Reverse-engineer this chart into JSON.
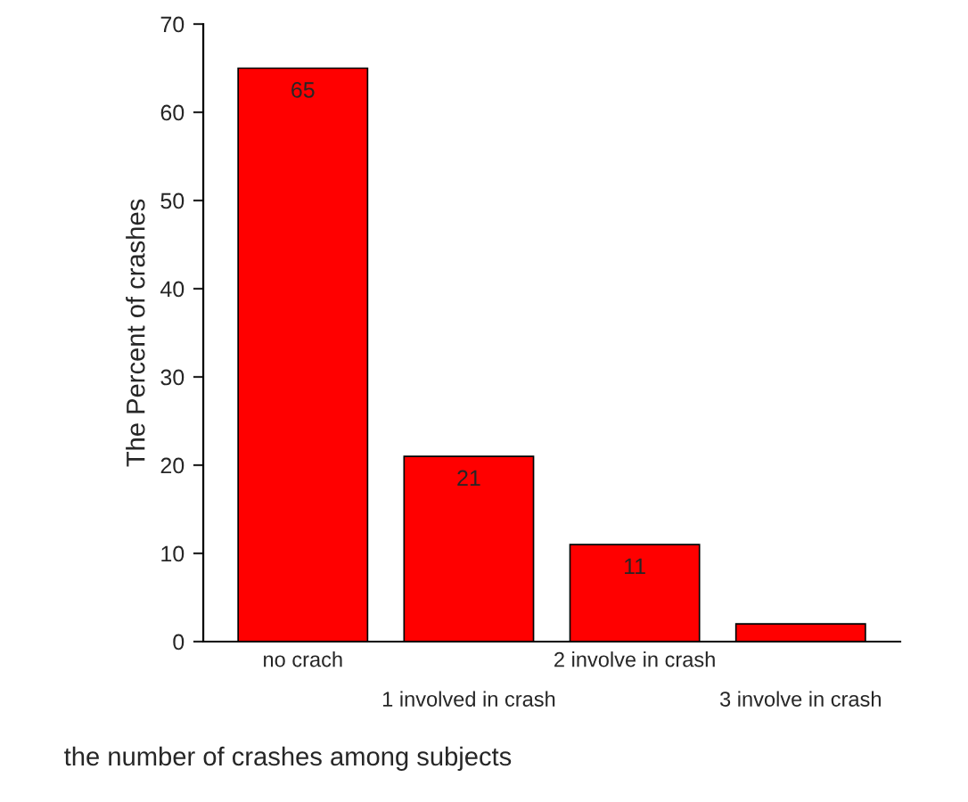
{
  "chart_data": {
    "type": "bar",
    "xlabel": "the number of crashes among subjects",
    "ylabel": "The Percent of crashes",
    "categories": [
      "no crach",
      "1 involved in crash",
      "2 involve in crash",
      "3 involve in crash"
    ],
    "values": [
      65,
      21,
      11,
      2
    ],
    "value_labels": [
      "65",
      "21",
      "11",
      null
    ],
    "color": "#ff0000",
    "ylim": [
      0,
      70
    ],
    "yticks": [
      0,
      10,
      20,
      30,
      40,
      50,
      60,
      70
    ],
    "grid": false,
    "legend": false
  }
}
